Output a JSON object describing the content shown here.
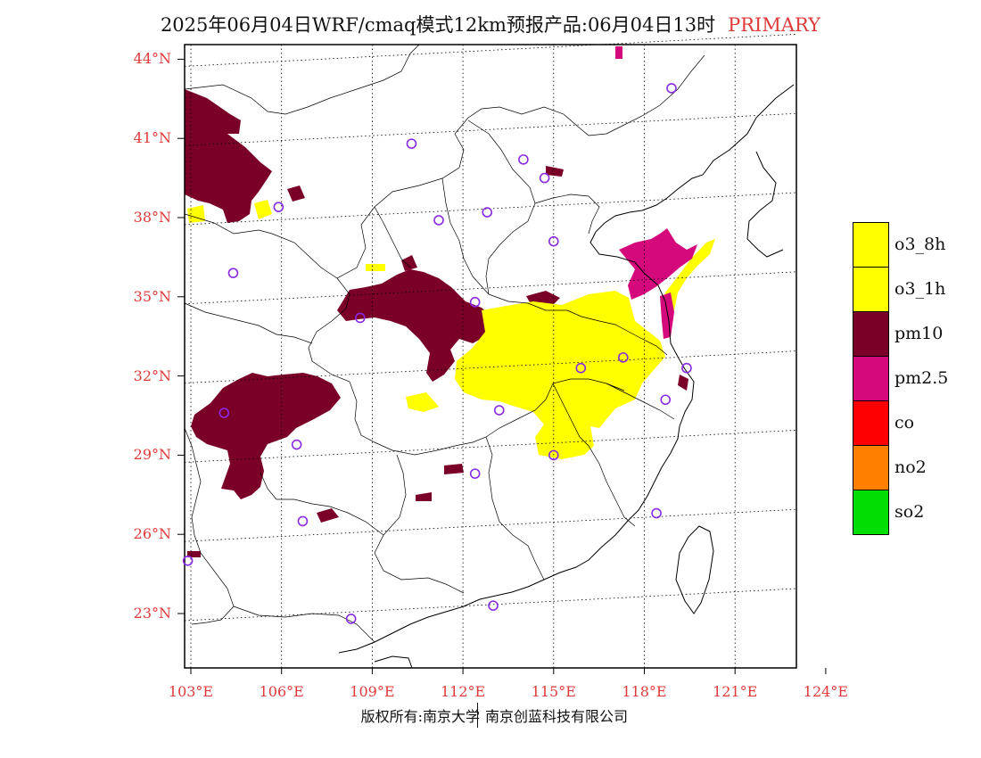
{
  "title": {
    "main": "2025年06月04日WRF/cmaq模式12km预报产品:06月04日13时",
    "tag": "PRIMARY"
  },
  "map": {
    "lat_labels": [
      "44°N",
      "41°N",
      "38°N",
      "35°N",
      "32°N",
      "29°N",
      "26°N",
      "23°N"
    ],
    "lon_labels": [
      "103°E",
      "106°E",
      "109°E",
      "112°E",
      "115°E",
      "118°E",
      "121°E",
      "124°E"
    ],
    "lat_values": [
      44,
      41,
      38,
      35,
      32,
      29,
      26,
      23
    ],
    "lon_values": [
      103,
      106,
      109,
      112,
      115,
      118,
      121,
      124
    ],
    "stations": [
      {
        "lon": 118.9,
        "lat": 42.9
      },
      {
        "lon": 110.3,
        "lat": 40.8
      },
      {
        "lon": 114.0,
        "lat": 40.2
      },
      {
        "lon": 114.7,
        "lat": 39.5
      },
      {
        "lon": 105.9,
        "lat": 38.4
      },
      {
        "lon": 111.2,
        "lat": 37.9
      },
      {
        "lon": 112.8,
        "lat": 38.2
      },
      {
        "lon": 115.0,
        "lat": 37.1
      },
      {
        "lon": 104.4,
        "lat": 35.9
      },
      {
        "lon": 112.4,
        "lat": 34.8
      },
      {
        "lon": 108.6,
        "lat": 34.2
      },
      {
        "lon": 115.9,
        "lat": 32.3
      },
      {
        "lon": 117.3,
        "lat": 32.7
      },
      {
        "lon": 119.4,
        "lat": 32.3
      },
      {
        "lon": 118.7,
        "lat": 31.1
      },
      {
        "lon": 104.1,
        "lat": 30.6
      },
      {
        "lon": 113.2,
        "lat": 30.7
      },
      {
        "lon": 106.5,
        "lat": 29.4
      },
      {
        "lon": 115.0,
        "lat": 29.0
      },
      {
        "lon": 112.4,
        "lat": 28.3
      },
      {
        "lon": 106.7,
        "lat": 26.5
      },
      {
        "lon": 118.4,
        "lat": 26.8
      },
      {
        "lon": 102.9,
        "lat": 25.0
      },
      {
        "lon": 108.3,
        "lat": 22.8
      },
      {
        "lon": 113.0,
        "lat": 23.3
      }
    ]
  },
  "legend": [
    {
      "label": "o3_8h",
      "color": "#ffff00"
    },
    {
      "label": "o3_1h",
      "color": "#ffff00"
    },
    {
      "label": "pm10",
      "color": "#7b0028"
    },
    {
      "label": "pm2.5",
      "color": "#d40a7c"
    },
    {
      "label": "co",
      "color": "#ff0000"
    },
    {
      "label": "no2",
      "color": "#ff7f00"
    },
    {
      "label": "so2",
      "color": "#00dd00"
    }
  ],
  "footer": {
    "left": "版权所有:南京大学",
    "right": "南京创蓝科技有限公司"
  }
}
